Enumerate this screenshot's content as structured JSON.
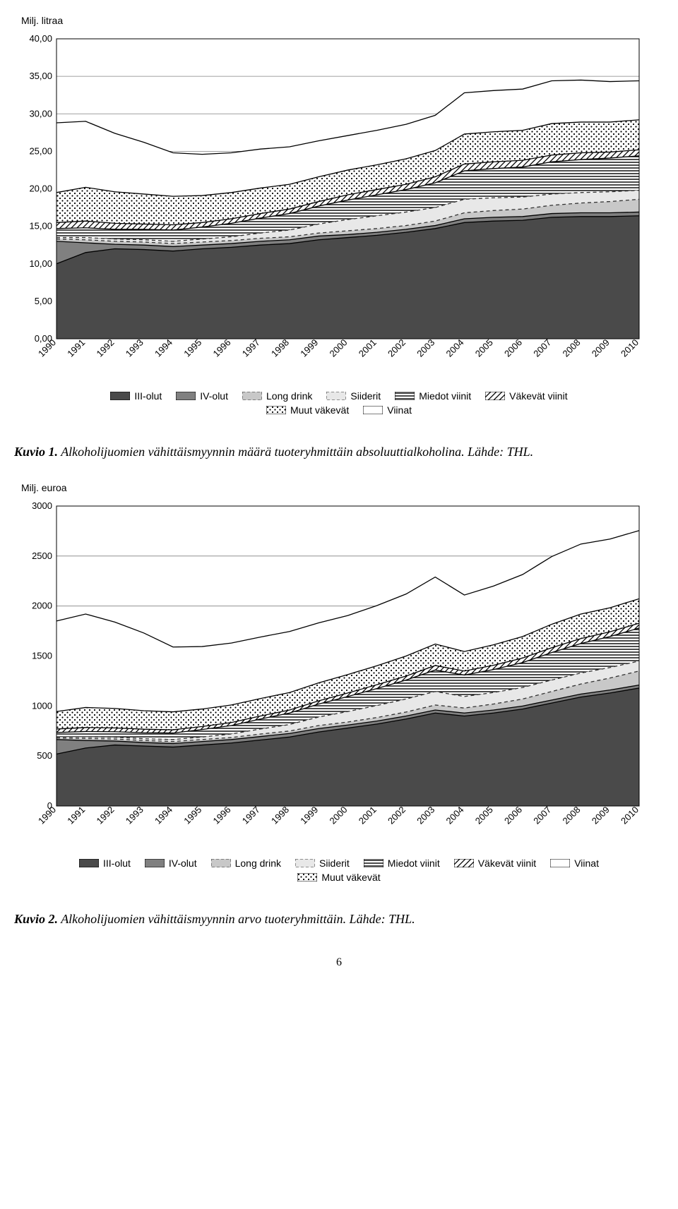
{
  "chart1": {
    "type": "stacked-area",
    "title": "Milj. litraa",
    "title_fontsize": 14,
    "years": [
      1990,
      1991,
      1992,
      1993,
      1994,
      1995,
      1996,
      1997,
      1998,
      1999,
      2000,
      2001,
      2002,
      2003,
      2004,
      2005,
      2006,
      2007,
      2008,
      2009,
      2010
    ],
    "series": [
      {
        "name": "III-olut",
        "values": [
          10.0,
          11.5,
          12.0,
          11.9,
          11.7,
          12.0,
          12.2,
          12.5,
          12.7,
          13.2,
          13.5,
          13.8,
          14.2,
          14.7,
          15.5,
          15.7,
          15.8,
          16.2,
          16.3,
          16.3,
          16.4
        ]
      },
      {
        "name": "IV-olut",
        "values": [
          3.0,
          1.3,
          0.6,
          0.6,
          0.6,
          0.5,
          0.5,
          0.5,
          0.5,
          0.5,
          0.4,
          0.4,
          0.4,
          0.4,
          0.5,
          0.5,
          0.5,
          0.5,
          0.5,
          0.5,
          0.5
        ]
      },
      {
        "name": "Long drink",
        "values": [
          0.3,
          0.4,
          0.4,
          0.4,
          0.4,
          0.4,
          0.4,
          0.4,
          0.4,
          0.4,
          0.5,
          0.5,
          0.5,
          0.6,
          0.8,
          0.9,
          1.0,
          1.1,
          1.3,
          1.5,
          1.7
        ]
      },
      {
        "name": "Siiderit",
        "values": [
          0.2,
          0.3,
          0.3,
          0.3,
          0.3,
          0.4,
          0.5,
          0.7,
          0.9,
          1.2,
          1.5,
          1.7,
          1.8,
          1.8,
          1.8,
          1.7,
          1.6,
          1.5,
          1.4,
          1.3,
          1.2
        ]
      },
      {
        "name": "Miedot viinit",
        "values": [
          1.2,
          1.3,
          1.3,
          1.4,
          1.5,
          1.6,
          1.8,
          2.0,
          2.2,
          2.4,
          2.6,
          2.8,
          3.0,
          3.3,
          3.8,
          3.9,
          4.0,
          4.3,
          4.4,
          4.5,
          4.6
        ]
      },
      {
        "name": "Väkevät viinit",
        "values": [
          0.8,
          0.9,
          0.8,
          0.7,
          0.7,
          0.6,
          0.6,
          0.6,
          0.6,
          0.6,
          0.7,
          0.7,
          0.7,
          0.8,
          0.9,
          0.9,
          0.9,
          0.9,
          0.9,
          0.8,
          0.8
        ]
      },
      {
        "name": "Muut väkevät",
        "values": [
          4.0,
          4.5,
          4.2,
          4.0,
          3.8,
          3.6,
          3.5,
          3.4,
          3.3,
          3.3,
          3.3,
          3.3,
          3.4,
          3.5,
          4.0,
          4.0,
          4.0,
          4.2,
          4.1,
          4.0,
          4.0
        ]
      },
      {
        "name": "Viinat",
        "values": [
          9.3,
          8.8,
          7.8,
          6.9,
          5.8,
          5.5,
          5.3,
          5.2,
          5.0,
          4.8,
          4.6,
          4.6,
          4.6,
          4.7,
          5.5,
          5.5,
          5.5,
          5.7,
          5.6,
          5.4,
          5.2
        ]
      }
    ],
    "ylim": [
      0,
      40
    ],
    "ytick_step": 5,
    "ytick_labels": [
      "0,00",
      "5,00",
      "10,00",
      "15,00",
      "20,00",
      "25,00",
      "30,00",
      "35,00",
      "40,00"
    ],
    "grid_color": "#808080",
    "tick_fontsize": 13,
    "xtick_rotation": -45,
    "plot_bg": "#ffffff",
    "border_color": "#000000"
  },
  "caption1": {
    "label": "Kuvio 1.",
    "text": " Alkoholijuomien vähittäismyynnin määrä tuoteryhmittäin absoluuttialkoholina. Lähde: THL."
  },
  "chart2": {
    "type": "stacked-area",
    "title": "Milj. euroa",
    "title_fontsize": 14,
    "years": [
      1990,
      1991,
      1992,
      1993,
      1994,
      1995,
      1996,
      1997,
      1998,
      1999,
      2000,
      2001,
      2002,
      2003,
      2004,
      2005,
      2006,
      2007,
      2008,
      2009,
      2010
    ],
    "series": [
      {
        "name": "III-olut",
        "values": [
          520,
          580,
          610,
          600,
          590,
          610,
          630,
          660,
          690,
          740,
          780,
          820,
          870,
          930,
          900,
          930,
          970,
          1030,
          1090,
          1130,
          1180
        ]
      },
      {
        "name": "IV-olut",
        "values": [
          145,
          75,
          40,
          35,
          35,
          35,
          35,
          35,
          35,
          35,
          30,
          30,
          30,
          30,
          30,
          30,
          30,
          30,
          30,
          30,
          30
        ]
      },
      {
        "name": "Long drink",
        "values": [
          15,
          20,
          20,
          20,
          20,
          20,
          20,
          25,
          25,
          30,
          30,
          35,
          40,
          50,
          50,
          60,
          70,
          85,
          100,
          120,
          140
        ]
      },
      {
        "name": "Siiderit",
        "values": [
          10,
          15,
          18,
          18,
          20,
          25,
          35,
          50,
          65,
          85,
          105,
          120,
          130,
          135,
          115,
          115,
          115,
          115,
          110,
          105,
          100
        ]
      },
      {
        "name": "Miedot viinit",
        "values": [
          45,
          55,
          55,
          60,
          65,
          75,
          85,
          100,
          115,
          130,
          150,
          170,
          190,
          215,
          215,
          230,
          250,
          275,
          295,
          310,
          330
        ]
      },
      {
        "name": "Väkevät viinit",
        "values": [
          35,
          40,
          38,
          35,
          32,
          30,
          30,
          30,
          30,
          32,
          35,
          38,
          40,
          45,
          40,
          42,
          45,
          48,
          50,
          48,
          48
        ]
      },
      {
        "name": "Muut väkevät",
        "values": [
          175,
          200,
          195,
          185,
          180,
          175,
          175,
          175,
          175,
          180,
          185,
          190,
          200,
          215,
          195,
          205,
          215,
          235,
          245,
          240,
          245
        ]
      },
      {
        "name": "Viinat",
        "values": [
          905,
          935,
          864,
          777,
          648,
          625,
          620,
          615,
          610,
          600,
          590,
          602,
          620,
          670,
          565,
          588,
          620,
          677,
          700,
          687,
          682
        ]
      }
    ],
    "ylim": [
      0,
      3000
    ],
    "ytick_step": 500,
    "ytick_labels": [
      "0",
      "500",
      "1000",
      "1500",
      "2000",
      "2500",
      "3000"
    ],
    "grid_color": "#808080",
    "tick_fontsize": 13,
    "xtick_rotation": -45,
    "plot_bg": "#ffffff",
    "border_color": "#000000"
  },
  "caption2": {
    "label": "Kuvio 2.",
    "text": " Alkoholijuomien vähittäismyynnin arvo tuoteryhmittäin. Lähde: THL."
  },
  "legendOrder1": [
    "III-olut",
    "IV-olut",
    "Long drink",
    "Siiderit",
    "Miedot viinit",
    "Väkevät viinit",
    "Muut väkevät",
    "Viinat"
  ],
  "legendOrder2": [
    "III-olut",
    "IV-olut",
    "Long drink",
    "Siiderit",
    "Miedot viinit",
    "Väkevät viinit",
    "Viinat",
    "Muut väkevät"
  ],
  "patterns": {
    "III-olut": "solid-dark",
    "IV-olut": "solid-gray",
    "Long drink": "light-gray-dashed",
    "Siiderit": "lightest-dashed",
    "Miedot viinit": "h-stripe",
    "Väkevät viinit": "diag-stripe",
    "Muut väkevät": "dots",
    "Viinat": "white"
  },
  "colors": {
    "dark": "#4a4a4a",
    "gray": "#808080",
    "lightgray": "#c8c8c8",
    "lightest": "#e8e8e8",
    "white": "#ffffff",
    "stroke": "#000000",
    "dash": "#333333"
  },
  "pageNumber": "6"
}
